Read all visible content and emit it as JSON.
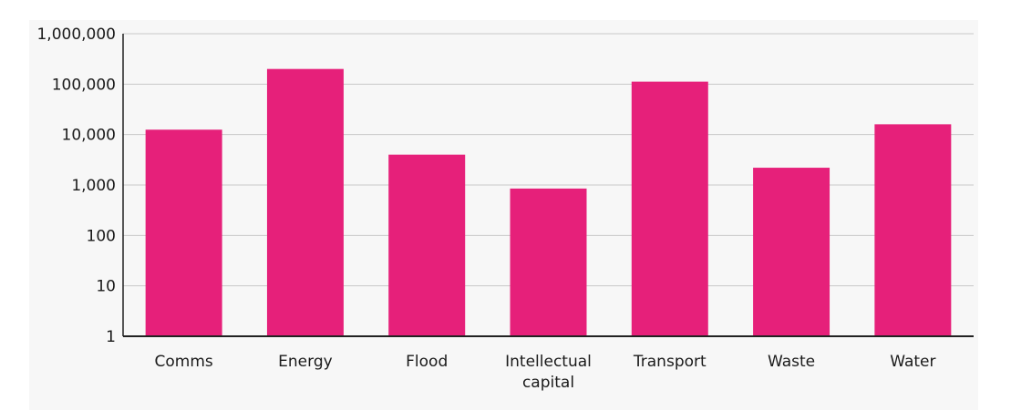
{
  "chart_data": {
    "type": "bar",
    "scale": "log",
    "categories": [
      "Comms",
      "Energy",
      "Flood",
      "Intellectual capital",
      "Transport",
      "Waste",
      "Water"
    ],
    "category_label_lines": [
      [
        "Comms"
      ],
      [
        "Energy"
      ],
      [
        "Flood"
      ],
      [
        "Intellectual",
        "capital"
      ],
      [
        "Transport"
      ],
      [
        "Waste"
      ],
      [
        "Water"
      ]
    ],
    "values": [
      12500,
      200000,
      4000,
      850,
      112000,
      2200,
      16000
    ],
    "yticks": [
      1,
      10,
      100,
      1000,
      10000,
      100000,
      1000000
    ],
    "ytick_labels": [
      "1",
      "10",
      "100",
      "1,000",
      "10,000",
      "100,000",
      "1,000,000"
    ],
    "ylim": [
      1,
      1000000
    ],
    "grid": true,
    "legend": "none",
    "title": "",
    "xlabel": "",
    "ylabel": "",
    "colors": {
      "bar": "#e6207a",
      "grid": "#c8c8c8",
      "axis": "#222222",
      "background": "#f7f7f7"
    }
  }
}
